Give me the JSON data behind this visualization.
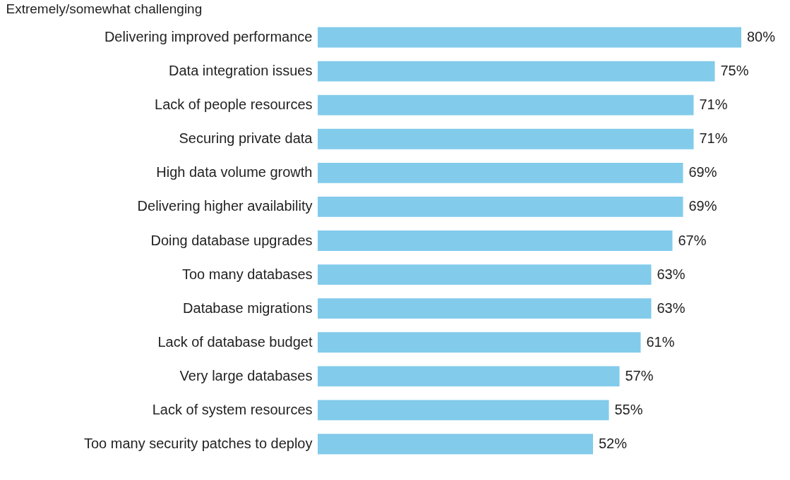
{
  "chart_data": {
    "type": "bar",
    "orientation": "horizontal",
    "title": "Extremely/somewhat challenging",
    "categories": [
      "Delivering improved performance",
      "Data integration issues",
      "Lack of people resources",
      "Securing private data",
      "High data volume growth",
      "Delivering higher availability",
      "Doing database upgrades",
      "Too many databases",
      "Database migrations",
      "Lack of database budget",
      "Very large databases",
      "Lack of system resources",
      "Too many security patches to deploy"
    ],
    "values": [
      80,
      75,
      71,
      71,
      69,
      69,
      67,
      63,
      63,
      61,
      57,
      55,
      52
    ],
    "value_labels": [
      "80%",
      "75%",
      "71%",
      "71%",
      "69%",
      "69%",
      "67%",
      "63%",
      "63%",
      "61%",
      "57%",
      "55%",
      "52%"
    ],
    "color": "#82cbeb",
    "tick_labels": "y"
  }
}
